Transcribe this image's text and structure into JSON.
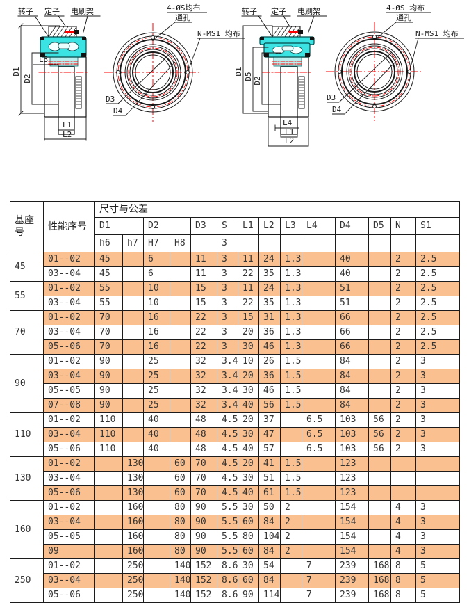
{
  "drawings": {
    "left": {
      "rotor": "转子",
      "stator": "定子",
      "brush": "电刷架",
      "holes1": "4-ØS均布",
      "holes2": "通孔",
      "thread": "N-MS1 均布",
      "d1": "D1",
      "d2": "D2",
      "d3": "D3",
      "d4": "D4",
      "l1": "L1",
      "l2": "L2",
      "l3": "L3"
    },
    "right": {
      "rotor": "转子",
      "stator": "定子",
      "brush": "电刷架",
      "holes1": "4-ØS 均布",
      "holes2": "通孔",
      "thread": "N-MS1 均布",
      "d1": "D1",
      "d2": "D2",
      "d3": "D3",
      "d4": "D4",
      "d5": "D5",
      "l1": "L1",
      "l2": "L2",
      "l4": "L4"
    }
  },
  "table": {
    "highlight_color": "#FAC090",
    "header": {
      "base": "基座号",
      "perf": "性能序号",
      "dims": "尺寸与公差",
      "groups": [
        "D1",
        "D2",
        "D3",
        "S",
        "L1",
        "L2",
        "L3",
        "L4",
        "D4",
        "D5",
        "N",
        "S1"
      ],
      "sub": [
        "h6",
        "h7",
        "H7",
        "H8",
        "",
        "3",
        "",
        "",
        "",
        "",
        "",
        "",
        "",
        ""
      ]
    },
    "sections": [
      {
        "base": "45",
        "rows": [
          {
            "perf": "01--02",
            "hl": true,
            "c": [
              "45",
              "",
              "6",
              "",
              "11",
              "3",
              "11",
              "24",
              "1.3",
              "",
              "40",
              "",
              "2",
              "2.5"
            ]
          },
          {
            "perf": "03--04",
            "hl": false,
            "c": [
              "45",
              "",
              "6",
              "",
              "11",
              "3",
              "22",
              "35",
              "1.3",
              "",
              "40",
              "",
              "2",
              "2.5"
            ]
          }
        ]
      },
      {
        "base": "55",
        "rows": [
          {
            "perf": "01--02",
            "hl": true,
            "c": [
              "55",
              "",
              "10",
              "",
              "15",
              "3",
              "11",
              "24",
              "1.3",
              "",
              "51",
              "",
              "2",
              "2.5"
            ]
          },
          {
            "perf": "03--04",
            "hl": false,
            "c": [
              "55",
              "",
              "10",
              "",
              "15",
              "3",
              "22",
              "35",
              "1.3",
              "",
              "51",
              "",
              "2",
              "2.5"
            ]
          }
        ]
      },
      {
        "base": "70",
        "rows": [
          {
            "perf": "01--02",
            "hl": true,
            "c": [
              "70",
              "",
              "16",
              "",
              "22",
              "3",
              "15",
              "31",
              "1.3",
              "",
              "66",
              "",
              "2",
              "2.5"
            ]
          },
          {
            "perf": "03--04",
            "hl": false,
            "c": [
              "70",
              "",
              "16",
              "",
              "22",
              "3",
              "20",
              "36",
              "1.3",
              "",
              "66",
              "",
              "2",
              "2.5"
            ]
          },
          {
            "perf": "05--06",
            "hl": true,
            "c": [
              "70",
              "",
              "16",
              "",
              "22",
              "3",
              "30",
              "46",
              "1.3",
              "",
              "66",
              "",
              "2",
              "2.5"
            ]
          }
        ]
      },
      {
        "base": "90",
        "rows": [
          {
            "perf": "01--02",
            "hl": false,
            "c": [
              "90",
              "",
              "25",
              "",
              "32",
              "3.4",
              "10",
              "26",
              "1.5",
              "",
              "84",
              "",
              "2",
              "3"
            ]
          },
          {
            "perf": "03--04",
            "hl": true,
            "c": [
              "90",
              "",
              "25",
              "",
              "32",
              "3.4",
              "20",
              "36",
              "1.5",
              "",
              "84",
              "",
              "2",
              "3"
            ]
          },
          {
            "perf": "05--05",
            "hl": false,
            "c": [
              "90",
              "",
              "25",
              "",
              "32",
              "3.4",
              "30",
              "46",
              "1.5",
              "",
              "84",
              "",
              "2",
              "3"
            ]
          },
          {
            "perf": "07--08",
            "hl": true,
            "c": [
              "90",
              "",
              "25",
              "",
              "32",
              "3.4",
              "40",
              "56",
              "1.5",
              "",
              "84",
              "",
              "2",
              "3"
            ]
          }
        ]
      },
      {
        "base": "110",
        "rows": [
          {
            "perf": "01--02",
            "hl": false,
            "c": [
              "110",
              "",
              "40",
              "",
              "48",
              "4.5",
              "20",
              "37",
              "",
              "6.5",
              "103",
              "56",
              "2",
              "3"
            ]
          },
          {
            "perf": "03--04",
            "hl": true,
            "c": [
              "110",
              "",
              "40",
              "",
              "48",
              "4.5",
              "30",
              "47",
              "",
              "6.5",
              "103",
              "56",
              "2",
              "3"
            ]
          },
          {
            "perf": "05--06",
            "hl": false,
            "c": [
              "110",
              "",
              "40",
              "",
              "48",
              "4.5",
              "40",
              "57",
              "",
              "6.5",
              "103",
              "56",
              "2",
              "3"
            ]
          }
        ]
      },
      {
        "base": "130",
        "rows": [
          {
            "perf": "01--02",
            "hl": true,
            "c": [
              "",
              "130",
              "",
              "60",
              "70",
              "4.5",
              "20",
              "41",
              "1.5",
              "",
              "123",
              "",
              "",
              ""
            ]
          },
          {
            "perf": "03--04",
            "hl": false,
            "c": [
              "",
              "130",
              "",
              "60",
              "70",
              "4.5",
              "30",
              "51",
              "1.5",
              "",
              "123",
              "",
              "",
              ""
            ]
          },
          {
            "perf": "05--06",
            "hl": true,
            "c": [
              "",
              "130",
              "",
              "60",
              "70",
              "4.5",
              "40",
              "61",
              "1.5",
              "",
              "123",
              "",
              "",
              ""
            ]
          }
        ]
      },
      {
        "base": "160",
        "rows": [
          {
            "perf": "01--02",
            "hl": false,
            "c": [
              "",
              "160",
              "",
              "80",
              "90",
              "5.5",
              "30",
              "50",
              "2",
              "",
              "154",
              "",
              "4",
              "3"
            ]
          },
          {
            "perf": "03--04",
            "hl": true,
            "c": [
              "",
              "160",
              "",
              "80",
              "90",
              "5.5",
              "60",
              "84",
              "2",
              "",
              "154",
              "",
              "4",
              "3"
            ]
          },
          {
            "perf": "05--05",
            "hl": false,
            "c": [
              "",
              "160",
              "",
              "80",
              "90",
              "5.5",
              "80",
              "104",
              "2",
              "",
              "154",
              "",
              "4",
              "3"
            ]
          },
          {
            "perf": "09",
            "hl": true,
            "c": [
              "",
              "160",
              "",
              "80",
              "90",
              "5.5",
              "60",
              "84",
              "2",
              "",
              "154",
              "",
              "4",
              "3"
            ]
          }
        ]
      },
      {
        "base": "250",
        "rows": [
          {
            "perf": "01--02",
            "hl": false,
            "c": [
              "",
              "250",
              "",
              "140",
              "152",
              "8.6",
              "30",
              "54",
              "",
              "7",
              "239",
              "168",
              "8",
              "5"
            ]
          },
          {
            "perf": "03--04",
            "hl": true,
            "c": [
              "",
              "250",
              "",
              "140",
              "152",
              "8.6",
              "60",
              "84",
              "",
              "7",
              "239",
              "168",
              "8",
              "5"
            ]
          },
          {
            "perf": "05--06",
            "hl": false,
            "c": [
              "",
              "250",
              "",
              "140",
              "152",
              "8.6",
              "90",
              "114",
              "",
              "7",
              "239",
              "168",
              "8",
              "5"
            ]
          }
        ]
      }
    ]
  }
}
